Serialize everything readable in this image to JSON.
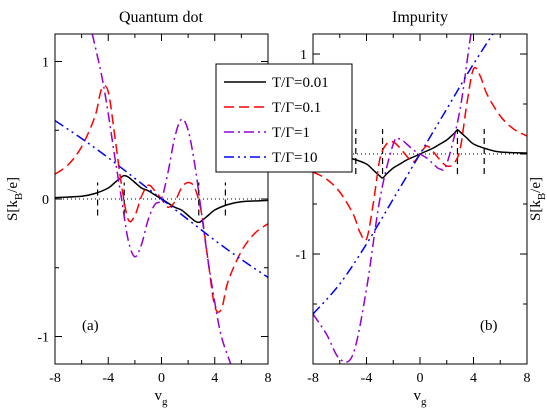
{
  "chart_data": [
    {
      "type": "line",
      "title": "Quantum dot",
      "xlabel": "v",
      "xlabel_sub": "g",
      "ylabel": "S[k",
      "ylabel_sub": "B",
      "ylabel_tail": "/e]",
      "panel_label": "(a)",
      "xlim": [
        -8,
        8
      ],
      "ylim": [
        -1.2,
        1.2
      ],
      "xticks": [
        -8,
        -4,
        0,
        4,
        8
      ],
      "xtick_labels": [
        "-8",
        "-4",
        "0",
        "4",
        "8"
      ],
      "yticks": [
        -1,
        0,
        1
      ],
      "ytick_labels": [
        "-1",
        "0",
        "1"
      ],
      "reference_lines": {
        "horizontal_dotted_y": 0,
        "vertical_dashed_x": [
          -4.8,
          -2.8,
          2.8,
          4.8
        ],
        "vertical_dashed_range": [
          -0.12,
          0.12
        ]
      },
      "series": [
        {
          "name": "T/Γ=0.01",
          "color": "#000000",
          "dash": "solid",
          "x": [
            -8,
            -6,
            -5,
            -4,
            -3.5,
            -3,
            -2.8,
            -2.5,
            -2,
            -1.5,
            -1,
            -0.5,
            0,
            0.5,
            1,
            1.5,
            2,
            2.5,
            2.8,
            3,
            3.5,
            4,
            5,
            6,
            8
          ],
          "y": [
            0.01,
            0.02,
            0.04,
            0.08,
            0.12,
            0.16,
            0.17,
            0.16,
            0.12,
            0.08,
            0.06,
            0.03,
            0,
            -0.03,
            -0.06,
            -0.08,
            -0.12,
            -0.16,
            -0.17,
            -0.16,
            -0.12,
            -0.08,
            -0.04,
            -0.02,
            -0.01
          ]
        },
        {
          "name": "T/Γ=0.1",
          "color": "#ff0000",
          "dash": "dashed",
          "x": [
            -8,
            -7,
            -6,
            -5,
            -4.5,
            -4,
            -3.5,
            -3,
            -2.5,
            -2,
            -1.5,
            -1,
            -0.5,
            0,
            0.5,
            1,
            1.5,
            2,
            2.5,
            3,
            3.5,
            4,
            4.5,
            5,
            6,
            7,
            8
          ],
          "y": [
            0.18,
            0.25,
            0.38,
            0.6,
            0.8,
            0.78,
            0.45,
            0.1,
            -0.15,
            -0.12,
            0.02,
            0.1,
            0.06,
            0,
            -0.06,
            -0.02,
            0.08,
            0.12,
            0.08,
            -0.1,
            -0.45,
            -0.78,
            -0.8,
            -0.6,
            -0.38,
            -0.25,
            -0.18
          ]
        },
        {
          "name": "T/Γ=1",
          "color": "#9400d3",
          "dash": "dashdot",
          "x": [
            -5.2,
            -4.5,
            -4,
            -3.5,
            -3,
            -2.5,
            -2,
            -1.5,
            -1,
            -0.5,
            0,
            0.5,
            1,
            1.5,
            2,
            2.5,
            3,
            3.5,
            4,
            4.5,
            5.2
          ],
          "y": [
            1.2,
            0.9,
            0.62,
            0.3,
            0.0,
            -0.3,
            -0.42,
            -0.33,
            -0.15,
            -0.04,
            0,
            0.2,
            0.45,
            0.58,
            0.5,
            0.25,
            -0.1,
            -0.45,
            -0.75,
            -1.0,
            -1.2
          ]
        },
        {
          "name": "T/Γ=10",
          "color": "#0000ff",
          "dash": "dashdotdot",
          "x": [
            -8,
            -6,
            -4,
            -2,
            0,
            2,
            4,
            6,
            8
          ],
          "y": [
            0.57,
            0.44,
            0.3,
            0.15,
            0,
            -0.15,
            -0.3,
            -0.44,
            -0.57
          ]
        }
      ]
    },
    {
      "type": "line",
      "title": "Impurity",
      "xlabel": "v",
      "xlabel_sub": "g",
      "ylabel": "S[k",
      "ylabel_sub": "B",
      "ylabel_tail": "/e]",
      "panel_label": "(b)",
      "xlim": [
        -8,
        8
      ],
      "ylim": [
        -2.1,
        1.2
      ],
      "xticks": [
        -8,
        -4,
        0,
        4,
        8
      ],
      "xtick_labels": [
        "-8",
        "-4",
        "0",
        "4",
        "8"
      ],
      "yticks": [
        -1,
        0,
        1
      ],
      "ytick_labels": [
        "-1",
        "0",
        "1"
      ],
      "reference_lines": {
        "horizontal_dotted_y": 0,
        "vertical_dashed_x": [
          -4.8,
          -2.8,
          2.8,
          4.8
        ],
        "vertical_dashed_range": [
          -0.2,
          0.25
        ]
      },
      "series": [
        {
          "name": "T/Γ=0.01",
          "color": "#000000",
          "dash": "solid",
          "x": [
            -8,
            -6,
            -5,
            -4,
            -3.5,
            -3,
            -2.8,
            -2.5,
            -2,
            -1.5,
            -1,
            -0.5,
            0,
            0.5,
            1,
            1.5,
            2,
            2.5,
            2.8,
            3,
            3.5,
            4,
            5,
            6,
            8
          ],
          "y": [
            -0.01,
            -0.02,
            -0.05,
            -0.1,
            -0.16,
            -0.22,
            -0.24,
            -0.2,
            -0.14,
            -0.1,
            -0.06,
            -0.03,
            0,
            0.03,
            0.06,
            0.1,
            0.14,
            0.2,
            0.24,
            0.22,
            0.16,
            0.1,
            0.05,
            0.02,
            0.01
          ]
        },
        {
          "name": "T/Γ=0.1",
          "color": "#ff0000",
          "dash": "dashed",
          "x": [
            -8,
            -7,
            -6,
            -5,
            -4.5,
            -4,
            -3.5,
            -3,
            -2.5,
            -2,
            -1.5,
            -1,
            -0.5,
            0,
            0.5,
            1,
            1.5,
            2,
            2.5,
            3,
            3.5,
            4,
            4.5,
            5,
            6,
            7,
            8
          ],
          "y": [
            -0.18,
            -0.25,
            -0.38,
            -0.6,
            -0.78,
            -0.85,
            -0.5,
            -0.05,
            0.1,
            0.12,
            0.06,
            -0.02,
            -0.08,
            0,
            0.08,
            0.02,
            -0.06,
            -0.12,
            -0.1,
            0.05,
            0.5,
            0.85,
            0.78,
            0.6,
            0.38,
            0.25,
            0.18
          ]
        },
        {
          "name": "T/Γ=1",
          "color": "#9400d3",
          "dash": "dashdot",
          "x": [
            -8,
            -7,
            -6,
            -5,
            -4,
            -3,
            -2,
            -1.5,
            -1,
            -0.5,
            0,
            0.5,
            1,
            1.5,
            2,
            3,
            4,
            5,
            6,
            7,
            8
          ],
          "y": [
            -1.6,
            -1.8,
            -2.05,
            -2.0,
            -1.35,
            -0.45,
            0.1,
            0.15,
            0.1,
            0.04,
            0,
            -0.04,
            -0.1,
            -0.15,
            -0.1,
            0.45,
            1.35,
            1.78,
            1.78,
            1.5,
            1.2
          ]
        },
        {
          "name": "T/Γ=10",
          "color": "#0000ff",
          "dash": "dashdotdot",
          "x": [
            -8,
            -6,
            -4,
            -2,
            0,
            2,
            4,
            6,
            8
          ],
          "y": [
            -1.6,
            -1.3,
            -0.9,
            -0.45,
            0,
            0.45,
            0.9,
            1.3,
            1.6
          ]
        }
      ]
    }
  ]
}
